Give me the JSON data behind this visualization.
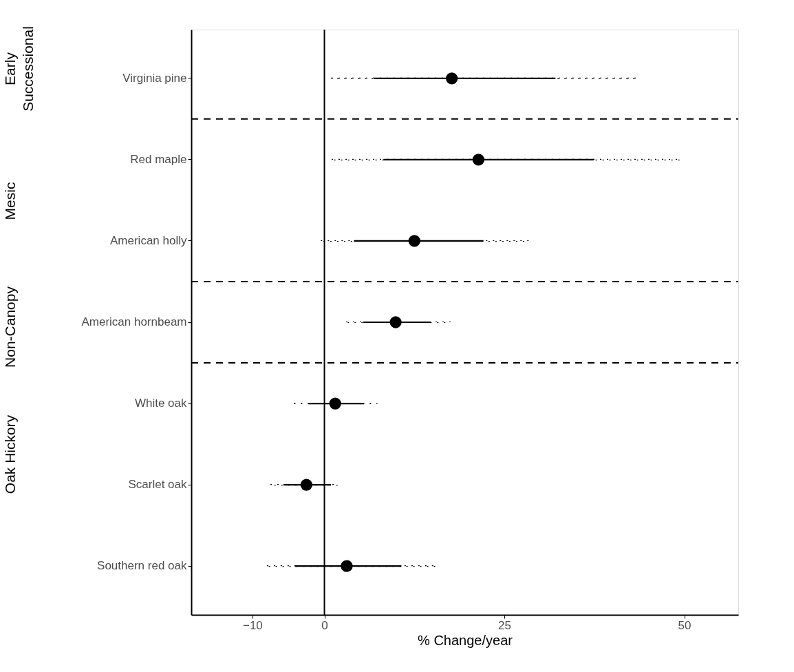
{
  "chart_data": {
    "type": "scatter",
    "orientation": "horizontal",
    "xlabel": "% Change/year",
    "categories": [
      "Virginia pine",
      "Red maple",
      "American holly",
      "American hornbeam",
      "White oak",
      "Scarlet oak",
      "Southern red oak"
    ],
    "series": [
      {
        "type": "bar",
        "color": "#000000",
        "line_style": "dotted",
        "base": [
          1.0,
          1.0,
          -0.5,
          3.0,
          -4.2,
          -7.5,
          -8.0
        ],
        "values": [
          42.5,
          48.5,
          28.9,
          14.5,
          11.5,
          9.4,
          23.6
        ]
      },
      {
        "color": "#000000",
        "marker": "circle",
        "line_style": "solid",
        "values": [
          17.7,
          21.4,
          12.5,
          9.9,
          1.5,
          -2.5,
          3.1
        ],
        "errors": [
          [
            6.9,
            32.1
          ],
          [
            8.2,
            37.4
          ],
          [
            4.1,
            22.1
          ],
          [
            5.4,
            14.8
          ],
          [
            -2.2,
            5.5
          ],
          [
            -5.7,
            0.9
          ],
          [
            -4.1,
            10.7
          ]
        ]
      }
    ],
    "xlim": [
      -18.5,
      57.5
    ],
    "xticks": [
      -10,
      0,
      25,
      50
    ],
    "ref_lines": [
      {
        "axis": "x",
        "value": 0,
        "line_style": "solid",
        "color": "#000000"
      }
    ],
    "annotations": [
      "Early\nSuccessional",
      "Mesic",
      "Non-Canopy",
      "Oak Hickory"
    ],
    "grid": false,
    "legend": false
  }
}
